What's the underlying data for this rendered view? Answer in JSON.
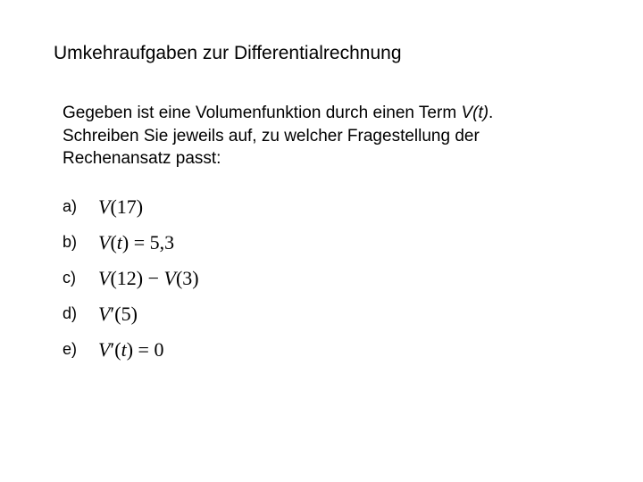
{
  "title": "Umkehraufgaben zur Differentialrechnung",
  "intro_part1": "Gegeben ist eine Volumenfunktion durch einen Term ",
  "intro_italic": "V(t)",
  "intro_part2": ". Schreiben Sie jeweils auf, zu welcher Fragestellung der Rechenansatz passt:",
  "items": {
    "a": {
      "label": "a)",
      "math_html": "<span class='mi'>V</span>(17)"
    },
    "b": {
      "label": "b)",
      "math_html": "<span class='mi'>V</span>(<span class='mi'>t</span>) = 5,3"
    },
    "c": {
      "label": "c)",
      "math_html": "<span class='mi'>V</span>(12) &minus; <span class='mi'>V</span>(3)"
    },
    "d": {
      "label": "d)",
      "math_html": "<span class='mi'>V</span>&prime;(5)"
    },
    "e": {
      "label": "e)",
      "math_html": "<span class='mi'>V</span>&prime;(<span class='mi'>t</span>) = 0"
    }
  },
  "style": {
    "background_color": "#ffffff",
    "text_color": "#000000",
    "title_fontsize": 21,
    "intro_fontsize": 19,
    "label_fontsize": 18,
    "math_fontsize": 22,
    "math_font": "Times New Roman",
    "body_font": "Arial"
  }
}
